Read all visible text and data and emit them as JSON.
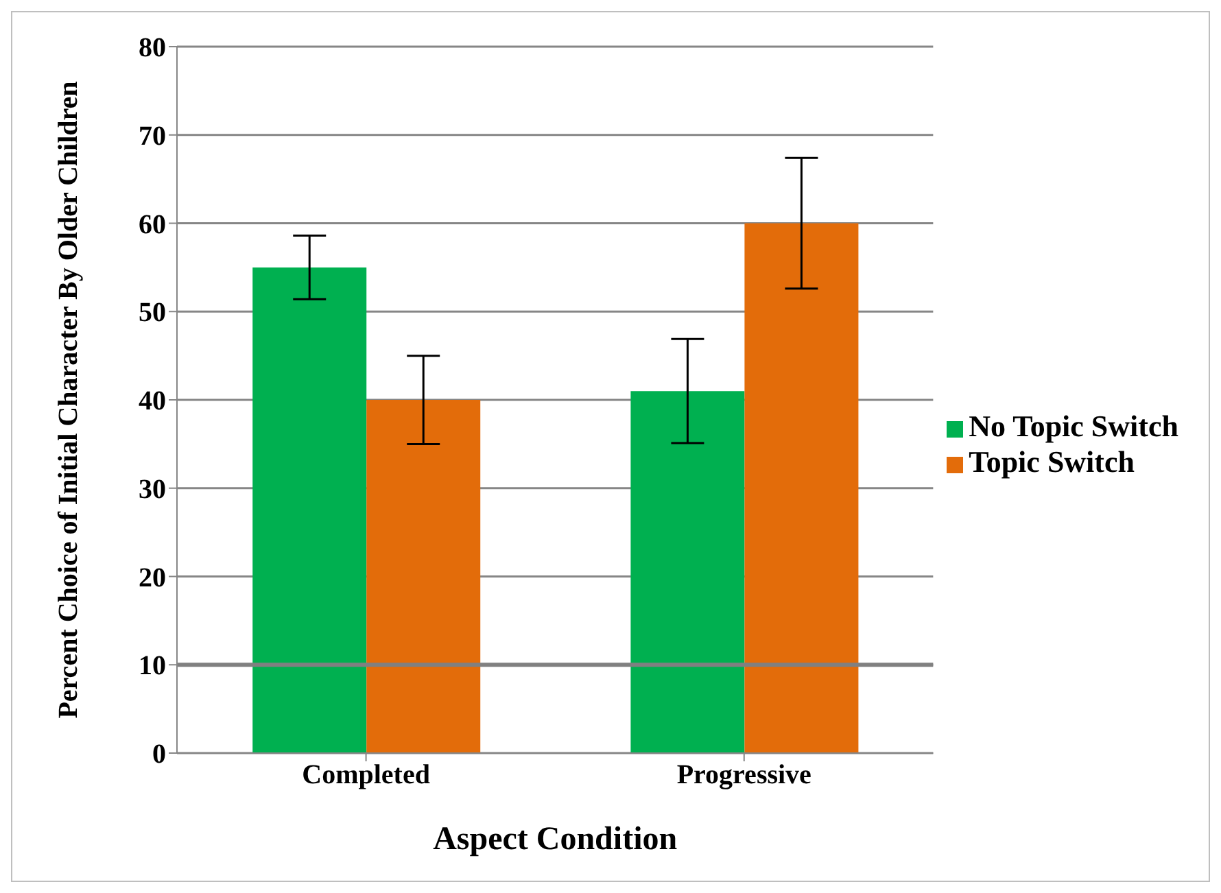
{
  "chart_data": {
    "type": "bar",
    "xlabel": "Aspect Condition",
    "ylabel": "Percent Choice of Initial Character By Older Children",
    "categories": [
      "Completed",
      "Progressive"
    ],
    "series": [
      {
        "name": "No Topic Switch",
        "color": "#00b050",
        "values": [
          55,
          41
        ],
        "errors": [
          3.6,
          5.9
        ]
      },
      {
        "name": "Topic Switch",
        "color": "#e36c0a",
        "values": [
          40,
          60
        ],
        "errors": [
          5,
          7.4
        ]
      }
    ],
    "ylim": [
      0,
      80
    ],
    "yticks": [
      0,
      10,
      20,
      30,
      40,
      50,
      60,
      70,
      80
    ],
    "grid": "y",
    "legend": "right",
    "ref_lines": [
      {
        "axis": "y",
        "value": 10,
        "color": "#808080"
      }
    ]
  }
}
